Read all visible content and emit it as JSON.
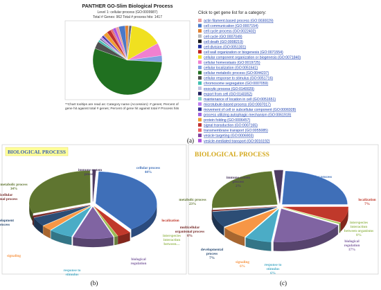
{
  "panels": {
    "a": {
      "title": "PANTHER GO-Slim Biological Process",
      "subtitle": "Level 1: cellular process (GO:0009987)",
      "totals": "Total # Genes: 962   Total # process hits: 1417",
      "legend_title": "Click to get gene list for a category:",
      "footnote_lines": [
        "**Chart tooltips are read as: Category name (Accession): # genes; Percent of",
        "gene hit against total # genes; Percent of gene hit against total # Process hits"
      ],
      "label": "(a)"
    },
    "b": {
      "title": "BIOLOGICAL PROCESS",
      "label": "(b)"
    },
    "c": {
      "title": "BIOLOGICAL PROCESS",
      "label": "(c)"
    }
  },
  "chart_data": [
    {
      "type": "pie",
      "panel": "a",
      "title": "PANTHER GO-Slim Biological Process",
      "categories": [
        "actin filament-based process (GO:0030029)",
        "cell communication (GO:0007154)",
        "cell cycle process (GO:0022402)",
        "cell cycle (GO:0007049)",
        "cell death (GO:0008219)",
        "cell division (GO:0051301)",
        "cell wall organization or biogenesis (GO:0071554)",
        "cellular component organization or biogenesis (GO:0071840)",
        "cellular homeostasis (GO:0019725)",
        "cellular localization (GO:0051641)",
        "cellular metabolic process (GO:0044237)",
        "cellular response to stimulus (GO:0051716)",
        "chromosome segregation (GO:0007059)",
        "exocytic process (GO:0140029)",
        "export from cell (GO:0140352)",
        "maintenance of location in cell (GO:0051651)",
        "microtubule-based process (GO:0007017)",
        "movement of cell or subcellular component (GO:0006928)",
        "process utilizing autophagic mechanism (GO:0061919)",
        "protein folding (GO:0006457)",
        "signal transduction (GO:0007165)",
        "transmembrane transport (GO:0055085)",
        "vesicle targeting (GO:0006903)",
        "vesicle-mediated transport (GO:0016192)"
      ],
      "values": [
        1.5,
        3.0,
        1.5,
        0.6,
        0.6,
        0.3,
        0.1,
        15.0,
        6.0,
        3.0,
        55.0,
        3.5,
        1.0,
        0.4,
        0.4,
        0.2,
        0.8,
        0.8,
        0.4,
        2.0,
        2.0,
        0.8,
        0.4,
        1.3
      ],
      "colors": [
        "#e8a0a0",
        "#4a78c8",
        "#e08030",
        "#b8b8b8",
        "#1a1a1a",
        "#2030a0",
        "#c02020",
        "#f0e020",
        "#f080d0",
        "#80a0e0",
        "#207020",
        "#505050",
        "#40c0b0",
        "#c0c0e0",
        "#202060",
        "#80d0c0",
        "#c080f0",
        "#303090",
        "#a060e0",
        "#f0a030",
        "#c03030",
        "#f06060",
        "#8040a0",
        "#b050e0"
      ]
    },
    {
      "type": "pie",
      "panel": "b",
      "title": "BIOLOGICAL PROCESS",
      "categories": [
        "cellular process",
        "localization",
        "interspecies interaction between...",
        "biological regulation",
        "response to stimulus",
        "signaling",
        "development process",
        "multicellular organismal process",
        "metabolic process",
        "immune system process"
      ],
      "values": [
        44,
        4,
        1,
        12,
        7,
        3,
        5,
        1,
        34,
        1
      ],
      "labels": [
        "cellular process\n44%",
        "localization",
        "interspecies\ninteraction\nbetween…",
        "biological\nregulation",
        "response to\nstimulus",
        "signaling",
        "development\nprocess",
        "multicellular\norganismal process",
        "metabolic process\n34%",
        "immune system\nprocess"
      ],
      "colors": [
        "#3f6fb8",
        "#c0392b",
        "#9bbb59",
        "#8064a2",
        "#4bacc6",
        "#f79646",
        "#2c4d75",
        "#772c2a",
        "#5f7530",
        "#4d3b62"
      ]
    },
    {
      "type": "pie",
      "panel": "c",
      "title": "BIOLOGICAL PROCESS",
      "categories": [
        "cellular process",
        "localization",
        "interspecies interaction between organisms",
        "biological regulation",
        "response to stimulus",
        "signaling",
        "developmental process",
        "multicellular organismal process",
        "metabolic process",
        "immune system process"
      ],
      "values": [
        22,
        7,
        0.5,
        17,
        6,
        6,
        7,
        0.5,
        23,
        2
      ],
      "labels": [
        "cellular process\n22%",
        "localization\n7%",
        "interspecies\ninteraction\nbetween organisms\n0%",
        "biological\nregulation\n17%",
        "response to\nstimulus\n6%",
        "signaling\n6%",
        "developmental\nprocess\n7%",
        "multicellular\norganismal process\n0%",
        "metabolic process\n23%",
        "immune system\nprocess\n2%"
      ],
      "colors": [
        "#3f6fb8",
        "#c0392b",
        "#9bbb59",
        "#8064a2",
        "#4bacc6",
        "#f79646",
        "#2c4d75",
        "#772c2a",
        "#5f7530",
        "#4d3b62"
      ]
    }
  ]
}
